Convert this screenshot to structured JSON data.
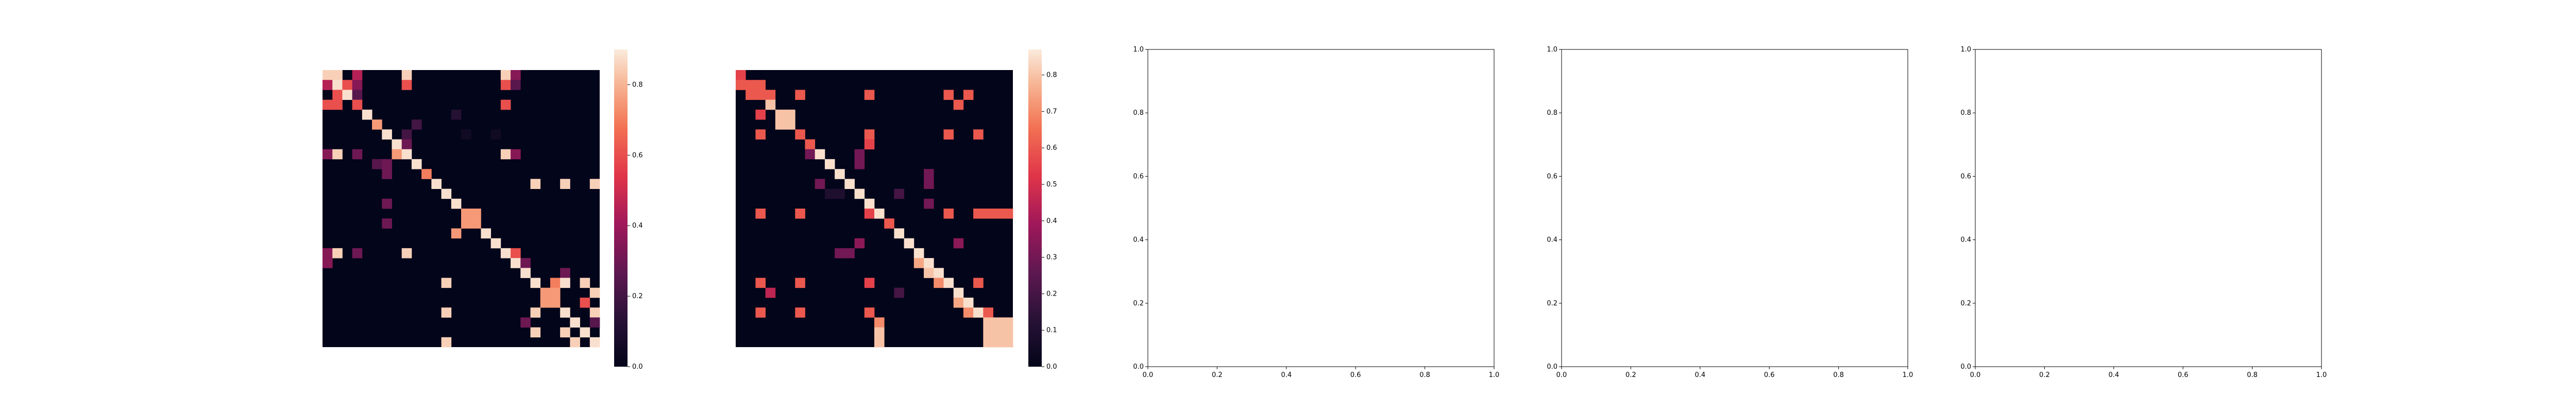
{
  "chart_data": [
    {
      "type": "heatmap",
      "colormap": "rocket",
      "grid": false,
      "rows": 28,
      "cols": 28,
      "colorbar_ticks": [
        "0.0",
        "0.2",
        "0.4",
        "0.6",
        "0.8"
      ],
      "vmin": 0.0,
      "vmax": 0.9,
      "cells": [
        [
          0,
          0,
          0.85
        ],
        [
          0,
          1,
          0.85
        ],
        [
          0,
          3,
          0.45
        ],
        [
          0,
          8,
          0.85
        ],
        [
          0,
          18,
          0.85
        ],
        [
          0,
          19,
          0.35
        ],
        [
          1,
          0,
          0.45
        ],
        [
          1,
          1,
          0.88
        ],
        [
          1,
          2,
          0.6
        ],
        [
          1,
          3,
          0.35
        ],
        [
          1,
          8,
          0.6
        ],
        [
          1,
          18,
          0.6
        ],
        [
          1,
          19,
          0.25
        ],
        [
          2,
          1,
          0.6
        ],
        [
          2,
          2,
          0.88
        ],
        [
          2,
          3,
          0.25
        ],
        [
          3,
          0,
          0.6
        ],
        [
          3,
          1,
          0.6
        ],
        [
          3,
          3,
          0.6
        ],
        [
          3,
          18,
          0.6
        ],
        [
          4,
          4,
          0.88
        ],
        [
          4,
          13,
          0.12
        ],
        [
          5,
          5,
          0.75
        ],
        [
          5,
          9,
          0.2
        ],
        [
          6,
          6,
          0.88
        ],
        [
          6,
          8,
          0.2
        ],
        [
          6,
          14,
          0.05
        ],
        [
          6,
          17,
          0.05
        ],
        [
          7,
          7,
          0.88
        ],
        [
          7,
          8,
          0.3
        ],
        [
          8,
          0,
          0.35
        ],
        [
          8,
          1,
          0.85
        ],
        [
          8,
          3,
          0.3
        ],
        [
          8,
          7,
          0.75
        ],
        [
          8,
          8,
          0.88
        ],
        [
          8,
          18,
          0.85
        ],
        [
          8,
          19,
          0.35
        ],
        [
          9,
          5,
          0.25
        ],
        [
          9,
          6,
          0.3
        ],
        [
          9,
          9,
          0.88
        ],
        [
          10,
          6,
          0.3
        ],
        [
          10,
          10,
          0.7
        ],
        [
          11,
          11,
          0.88
        ],
        [
          11,
          21,
          0.85
        ],
        [
          11,
          24,
          0.85
        ],
        [
          11,
          27,
          0.85
        ],
        [
          12,
          12,
          0.88
        ],
        [
          13,
          6,
          0.3
        ],
        [
          13,
          13,
          0.88
        ],
        [
          14,
          14,
          0.75
        ],
        [
          14,
          15,
          0.75
        ],
        [
          15,
          6,
          0.3
        ],
        [
          15,
          14,
          0.75
        ],
        [
          15,
          15,
          0.75
        ],
        [
          16,
          13,
          0.75
        ],
        [
          16,
          16,
          0.88
        ],
        [
          17,
          17,
          0.88
        ],
        [
          18,
          0,
          0.35
        ],
        [
          18,
          1,
          0.85
        ],
        [
          18,
          3,
          0.3
        ],
        [
          18,
          8,
          0.85
        ],
        [
          18,
          18,
          0.88
        ],
        [
          18,
          19,
          0.6
        ],
        [
          19,
          0,
          0.35
        ],
        [
          19,
          19,
          0.88
        ],
        [
          19,
          20,
          0.3
        ],
        [
          20,
          20,
          0.88
        ],
        [
          20,
          24,
          0.3
        ],
        [
          21,
          12,
          0.85
        ],
        [
          21,
          21,
          0.88
        ],
        [
          21,
          23,
          0.7
        ],
        [
          21,
          24,
          0.88
        ],
        [
          21,
          26,
          0.85
        ],
        [
          22,
          22,
          0.75
        ],
        [
          22,
          23,
          0.75
        ],
        [
          22,
          27,
          0.85
        ],
        [
          23,
          22,
          0.75
        ],
        [
          23,
          23,
          0.75
        ],
        [
          23,
          26,
          0.6
        ],
        [
          24,
          12,
          0.85
        ],
        [
          24,
          21,
          0.85
        ],
        [
          24,
          24,
          0.88
        ],
        [
          24,
          27,
          0.85
        ],
        [
          25,
          20,
          0.3
        ],
        [
          25,
          25,
          0.88
        ],
        [
          25,
          27,
          0.25
        ],
        [
          26,
          21,
          0.85
        ],
        [
          26,
          24,
          0.85
        ],
        [
          26,
          26,
          0.88
        ],
        [
          27,
          12,
          0.85
        ],
        [
          27,
          25,
          0.85
        ],
        [
          27,
          27,
          0.88
        ]
      ]
    },
    {
      "type": "heatmap",
      "colormap": "rocket",
      "grid": false,
      "rows": 28,
      "cols": 28,
      "colorbar_ticks": [
        "0.0",
        "0.1",
        "0.2",
        "0.3",
        "0.4",
        "0.5",
        "0.6",
        "0.7",
        "0.8"
      ],
      "vmin": 0.0,
      "vmax": 0.87,
      "cells": [
        [
          0,
          0,
          0.55
        ],
        [
          1,
          0,
          0.6
        ],
        [
          1,
          1,
          0.6
        ],
        [
          1,
          2,
          0.6
        ],
        [
          2,
          1,
          0.6
        ],
        [
          2,
          2,
          0.6
        ],
        [
          2,
          3,
          0.6
        ],
        [
          2,
          6,
          0.6
        ],
        [
          2,
          13,
          0.6
        ],
        [
          2,
          21,
          0.6
        ],
        [
          2,
          23,
          0.6
        ],
        [
          3,
          3,
          0.8
        ],
        [
          3,
          22,
          0.6
        ],
        [
          4,
          2,
          0.55
        ],
        [
          4,
          4,
          0.8
        ],
        [
          4,
          5,
          0.8
        ],
        [
          5,
          4,
          0.8
        ],
        [
          5,
          5,
          0.8
        ],
        [
          6,
          2,
          0.6
        ],
        [
          6,
          6,
          0.6
        ],
        [
          6,
          13,
          0.6
        ],
        [
          6,
          21,
          0.6
        ],
        [
          6,
          24,
          0.6
        ],
        [
          7,
          7,
          0.6
        ],
        [
          7,
          13,
          0.55
        ],
        [
          8,
          7,
          0.3
        ],
        [
          8,
          8,
          0.85
        ],
        [
          8,
          12,
          0.3
        ],
        [
          9,
          9,
          0.85
        ],
        [
          9,
          12,
          0.3
        ],
        [
          10,
          10,
          0.85
        ],
        [
          10,
          19,
          0.3
        ],
        [
          11,
          8,
          0.3
        ],
        [
          11,
          11,
          0.85
        ],
        [
          11,
          19,
          0.3
        ],
        [
          12,
          9,
          0.1
        ],
        [
          12,
          10,
          0.1
        ],
        [
          12,
          12,
          0.85
        ],
        [
          12,
          16,
          0.2
        ],
        [
          13,
          13,
          0.85
        ],
        [
          13,
          19,
          0.3
        ],
        [
          14,
          2,
          0.6
        ],
        [
          14,
          6,
          0.6
        ],
        [
          14,
          13,
          0.55
        ],
        [
          14,
          14,
          0.85
        ],
        [
          14,
          21,
          0.6
        ],
        [
          14,
          24,
          0.6
        ],
        [
          14,
          25,
          0.6
        ],
        [
          14,
          26,
          0.6
        ],
        [
          14,
          27,
          0.6
        ],
        [
          15,
          15,
          0.6
        ],
        [
          16,
          16,
          0.85
        ],
        [
          17,
          12,
          0.35
        ],
        [
          17,
          17,
          0.85
        ],
        [
          17,
          22,
          0.35
        ],
        [
          18,
          10,
          0.3
        ],
        [
          18,
          11,
          0.3
        ],
        [
          18,
          18,
          0.85
        ],
        [
          19,
          18,
          0.75
        ],
        [
          19,
          19,
          0.85
        ],
        [
          20,
          19,
          0.8
        ],
        [
          20,
          20,
          0.85
        ],
        [
          21,
          2,
          0.6
        ],
        [
          21,
          6,
          0.6
        ],
        [
          21,
          13,
          0.55
        ],
        [
          21,
          20,
          0.7
        ],
        [
          21,
          21,
          0.85
        ],
        [
          21,
          24,
          0.6
        ],
        [
          22,
          3,
          0.45
        ],
        [
          22,
          16,
          0.2
        ],
        [
          22,
          22,
          0.85
        ],
        [
          23,
          22,
          0.75
        ],
        [
          23,
          23,
          0.85
        ],
        [
          24,
          2,
          0.6
        ],
        [
          24,
          6,
          0.6
        ],
        [
          24,
          13,
          0.6
        ],
        [
          24,
          23,
          0.7
        ],
        [
          24,
          24,
          0.85
        ],
        [
          24,
          25,
          0.6
        ],
        [
          25,
          14,
          0.7
        ],
        [
          25,
          25,
          0.8
        ],
        [
          25,
          26,
          0.8
        ],
        [
          25,
          27,
          0.8
        ],
        [
          26,
          14,
          0.8
        ],
        [
          26,
          25,
          0.8
        ],
        [
          26,
          26,
          0.8
        ],
        [
          26,
          27,
          0.8
        ],
        [
          27,
          14,
          0.8
        ],
        [
          27,
          25,
          0.8
        ],
        [
          27,
          26,
          0.8
        ],
        [
          27,
          27,
          0.8
        ]
      ]
    },
    {
      "type": "line",
      "series": [],
      "xlim": [
        0,
        1
      ],
      "ylim": [
        0,
        1
      ],
      "xticks": [
        "0.0",
        "0.2",
        "0.4",
        "0.6",
        "0.8",
        "1.0"
      ],
      "yticks": [
        "0.0",
        "0.2",
        "0.4",
        "0.6",
        "0.8",
        "1.0"
      ]
    },
    {
      "type": "line",
      "series": [],
      "xlim": [
        0,
        1
      ],
      "ylim": [
        0,
        1
      ],
      "xticks": [
        "0.0",
        "0.2",
        "0.4",
        "0.6",
        "0.8",
        "1.0"
      ],
      "yticks": [
        "0.0",
        "0.2",
        "0.4",
        "0.6",
        "0.8",
        "1.0"
      ]
    },
    {
      "type": "line",
      "series": [],
      "xlim": [
        0,
        1
      ],
      "ylim": [
        0,
        1
      ],
      "xticks": [
        "0.0",
        "0.2",
        "0.4",
        "0.6",
        "0.8",
        "1.0"
      ],
      "yticks": [
        "0.0",
        "0.2",
        "0.4",
        "0.6",
        "0.8",
        "1.0"
      ]
    }
  ]
}
